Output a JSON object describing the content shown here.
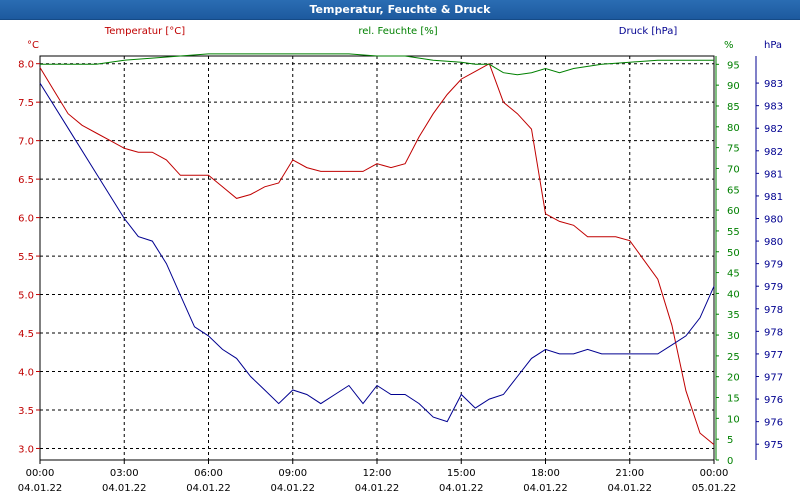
{
  "window": {
    "title": "Temperatur, Feuchte & Druck"
  },
  "chart_data": {
    "type": "line",
    "title": "Temperatur, Feuchte & Druck",
    "x_ticks": [
      {
        "time": "00:00",
        "date": "04.01.22"
      },
      {
        "time": "03:00",
        "date": "04.01.22"
      },
      {
        "time": "06:00",
        "date": "04.01.22"
      },
      {
        "time": "09:00",
        "date": "04.01.22"
      },
      {
        "time": "12:00",
        "date": "04.01.22"
      },
      {
        "time": "15:00",
        "date": "04.01.22"
      },
      {
        "time": "18:00",
        "date": "04.01.22"
      },
      {
        "time": "21:00",
        "date": "04.01.22"
      },
      {
        "time": "00:00",
        "date": "05.01.22"
      }
    ],
    "x_range_hours": [
      0,
      24
    ],
    "grid": true,
    "axes": {
      "temperature": {
        "label": "Temperatur [°C]",
        "unit": "°C",
        "color": "#c00000",
        "range": [
          2.85,
          8.1
        ],
        "ticks": [
          "3.0",
          "3.5",
          "4.0",
          "4.5",
          "5.0",
          "5.5",
          "6.0",
          "6.5",
          "7.0",
          "7.5",
          "8.0"
        ]
      },
      "humidity": {
        "label": "rel. Feuchte [%]",
        "unit": "%",
        "color": "#008000",
        "range": [
          0,
          97
        ],
        "ticks": [
          "0",
          "5",
          "10",
          "15",
          "20",
          "25",
          "30",
          "35",
          "40",
          "45",
          "50",
          "55",
          "60",
          "65",
          "70",
          "75",
          "80",
          "85",
          "90",
          "95"
        ]
      },
      "pressure": {
        "label": "Druck [hPa]",
        "unit": "hPa",
        "color": "#000090",
        "range": [
          974.65,
          983.6
        ],
        "ticks": [
          {
            "value": 975.0,
            "label": "975"
          },
          {
            "value": 975.5,
            "label": "976"
          },
          {
            "value": 976.0,
            "label": "976"
          },
          {
            "value": 976.5,
            "label": "977"
          },
          {
            "value": 977.0,
            "label": "977"
          },
          {
            "value": 977.5,
            "label": "978"
          },
          {
            "value": 978.0,
            "label": "978"
          },
          {
            "value": 978.5,
            "label": "979"
          },
          {
            "value": 979.0,
            "label": "979"
          },
          {
            "value": 979.5,
            "label": "980"
          },
          {
            "value": 980.0,
            "label": "980"
          },
          {
            "value": 980.5,
            "label": "981"
          },
          {
            "value": 981.0,
            "label": "981"
          },
          {
            "value": 981.5,
            "label": "982"
          },
          {
            "value": 982.0,
            "label": "982"
          },
          {
            "value": 982.5,
            "label": "983"
          },
          {
            "value": 983.0,
            "label": "983"
          }
        ]
      }
    },
    "series": [
      {
        "name": "Temperatur [°C]",
        "axis": "temperature",
        "color": "#c00000",
        "x": [
          0,
          0.5,
          1,
          1.5,
          2,
          2.5,
          3,
          3.5,
          4,
          4.5,
          5,
          5.5,
          6,
          6.5,
          7,
          7.5,
          8,
          8.5,
          9,
          9.5,
          10,
          10.5,
          11,
          11.5,
          12,
          12.5,
          13,
          13.5,
          14,
          14.5,
          15,
          15.5,
          16,
          16.5,
          17,
          17.5,
          18,
          18.5,
          19,
          19.5,
          20,
          20.5,
          21,
          21.5,
          22,
          22.5,
          23,
          23.5,
          24
        ],
        "values": [
          7.95,
          7.65,
          7.35,
          7.2,
          7.1,
          7.0,
          6.9,
          6.85,
          6.85,
          6.75,
          6.55,
          6.55,
          6.55,
          6.4,
          6.25,
          6.3,
          6.4,
          6.45,
          6.75,
          6.65,
          6.6,
          6.6,
          6.6,
          6.6,
          6.7,
          6.65,
          6.7,
          7.05,
          7.35,
          7.6,
          7.8,
          7.9,
          8.0,
          7.5,
          7.35,
          7.15,
          6.05,
          5.95,
          5.9,
          5.75,
          5.75,
          5.75,
          5.7,
          5.45,
          5.2,
          4.6,
          3.75,
          3.2,
          3.05
        ]
      },
      {
        "name": "rel. Feuchte [%]",
        "axis": "humidity",
        "color": "#008000",
        "x": [
          0,
          1,
          2,
          3,
          4,
          5,
          6,
          7,
          8,
          9,
          10,
          11,
          12,
          13,
          14,
          15,
          15.5,
          16,
          16.5,
          17,
          17.5,
          18,
          18.5,
          19,
          20,
          21,
          22,
          23,
          24
        ],
        "values": [
          95,
          95,
          95,
          96,
          96.5,
          97,
          97.5,
          97.5,
          97.5,
          97.5,
          97.5,
          97.5,
          97,
          97,
          96,
          95.5,
          95,
          95,
          93,
          92.5,
          93,
          94,
          93,
          94,
          95,
          95.5,
          96,
          96,
          96
        ]
      },
      {
        "name": "Druck [hPa]",
        "axis": "pressure",
        "color": "#000090",
        "x": [
          0,
          1,
          2,
          3,
          3.5,
          4,
          4.5,
          5,
          5.5,
          6,
          6.5,
          7,
          7.5,
          8,
          8.5,
          9,
          9.5,
          10,
          10.5,
          11,
          11.5,
          12,
          12.5,
          13,
          13.5,
          14,
          14.5,
          15,
          15.5,
          16,
          16.5,
          17,
          17.5,
          18,
          18.5,
          19,
          19.5,
          20,
          20.5,
          21,
          21.5,
          22,
          22.5,
          23,
          23.5,
          24
        ],
        "values": [
          983.0,
          982.0,
          981.0,
          980.0,
          979.6,
          979.5,
          979.0,
          978.3,
          977.6,
          977.4,
          977.1,
          976.9,
          976.5,
          976.2,
          975.9,
          976.2,
          976.1,
          975.9,
          976.1,
          976.3,
          975.9,
          976.3,
          976.1,
          976.1,
          975.9,
          975.6,
          975.5,
          976.1,
          975.8,
          976.0,
          976.1,
          976.5,
          976.9,
          977.1,
          977.0,
          977.0,
          977.1,
          977.0,
          977.0,
          977.0,
          977.0,
          977.0,
          977.2,
          977.4,
          977.8,
          978.5
        ]
      }
    ]
  }
}
